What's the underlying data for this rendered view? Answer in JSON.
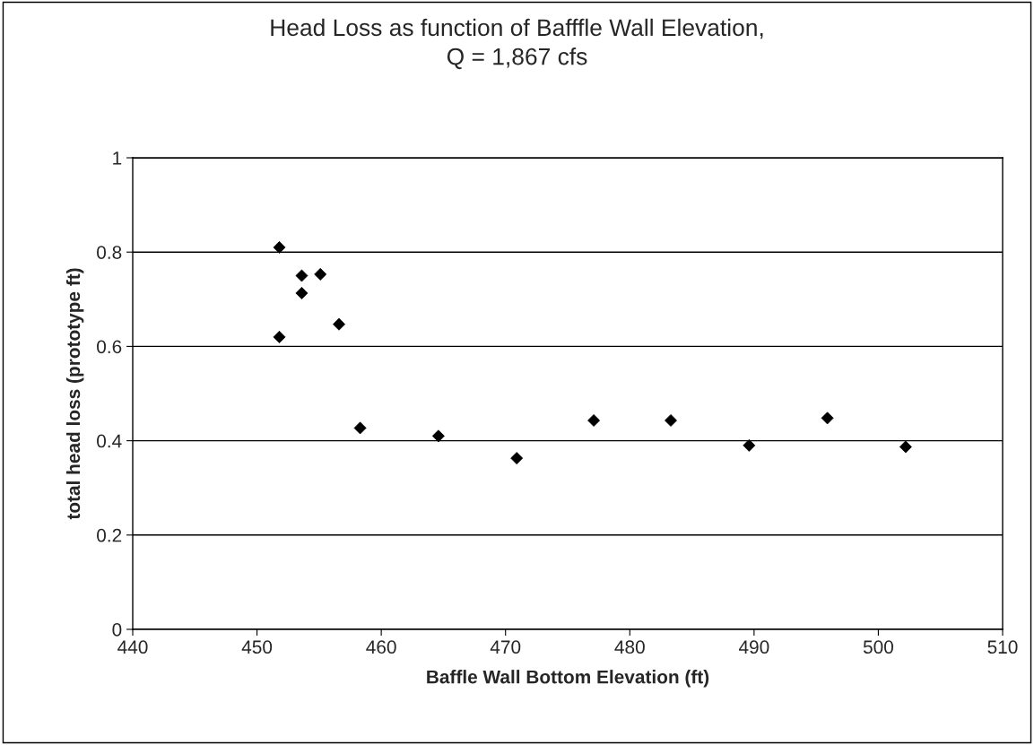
{
  "chart_data": {
    "type": "scatter",
    "title": "Head Loss as function of Bafffle Wall Elevation,\nQ = 1,867 cfs",
    "xlabel": "Baffle Wall Bottom Elevation (ft)",
    "ylabel": "total head loss (prototype ft)",
    "x": [
      451.8,
      451.8,
      453.6,
      453.6,
      455.1,
      456.6,
      458.3,
      464.6,
      470.9,
      477.1,
      483.3,
      489.6,
      495.9,
      502.2
    ],
    "values": [
      0.81,
      0.62,
      0.75,
      0.713,
      0.753,
      0.647,
      0.427,
      0.41,
      0.363,
      0.443,
      0.443,
      0.39,
      0.448,
      0.387
    ],
    "color": "#000000",
    "marker": "diamond",
    "xlim": [
      440,
      510
    ],
    "xticks": [
      440,
      450,
      460,
      470,
      480,
      490,
      500,
      510
    ],
    "ylim": [
      0,
      1
    ],
    "yticks": [
      0,
      0.2,
      0.4,
      0.6,
      0.8,
      1
    ],
    "grid": "y"
  }
}
